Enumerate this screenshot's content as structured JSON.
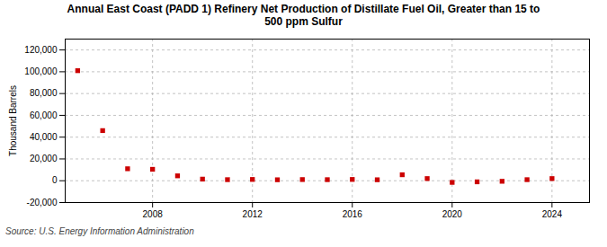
{
  "chart_data": {
    "type": "scatter",
    "title": "Annual East Coast (PADD 1) Refinery Net Production of Distillate Fuel Oil, Greater than 15 to\n500 ppm Sulfur",
    "ylabel": "Thousand Barrels",
    "source": "Source: U.S. Energy Information Administration",
    "x": [
      2005,
      2006,
      2007,
      2008,
      2009,
      2010,
      2011,
      2012,
      2013,
      2014,
      2015,
      2016,
      2017,
      2018,
      2019,
      2020,
      2021,
      2022,
      2023,
      2024
    ],
    "values": [
      101000,
      46000,
      11000,
      10500,
      4500,
      1500,
      1000,
      1200,
      900,
      1100,
      1000,
      1200,
      900,
      5500,
      2000,
      -1500,
      -1000,
      -500,
      1000,
      2000
    ],
    "color": "#cc0000",
    "marker": "square",
    "xlim": [
      2004.5,
      2025.5
    ],
    "xticks": [
      2008,
      2012,
      2016,
      2020,
      2024
    ],
    "ylim": [
      -20000,
      130000
    ],
    "yticks": [
      {
        "value": -20000,
        "label": "-20,000"
      },
      0,
      {
        "value": 20000,
        "label": "20,000"
      },
      {
        "value": 40000,
        "label": "40,000"
      },
      {
        "value": 60000,
        "label": "60,000"
      },
      {
        "value": 80000,
        "label": "80,000"
      },
      {
        "value": 100000,
        "label": "100,000"
      },
      {
        "value": 120000,
        "label": "120,000"
      }
    ],
    "grid": true
  }
}
